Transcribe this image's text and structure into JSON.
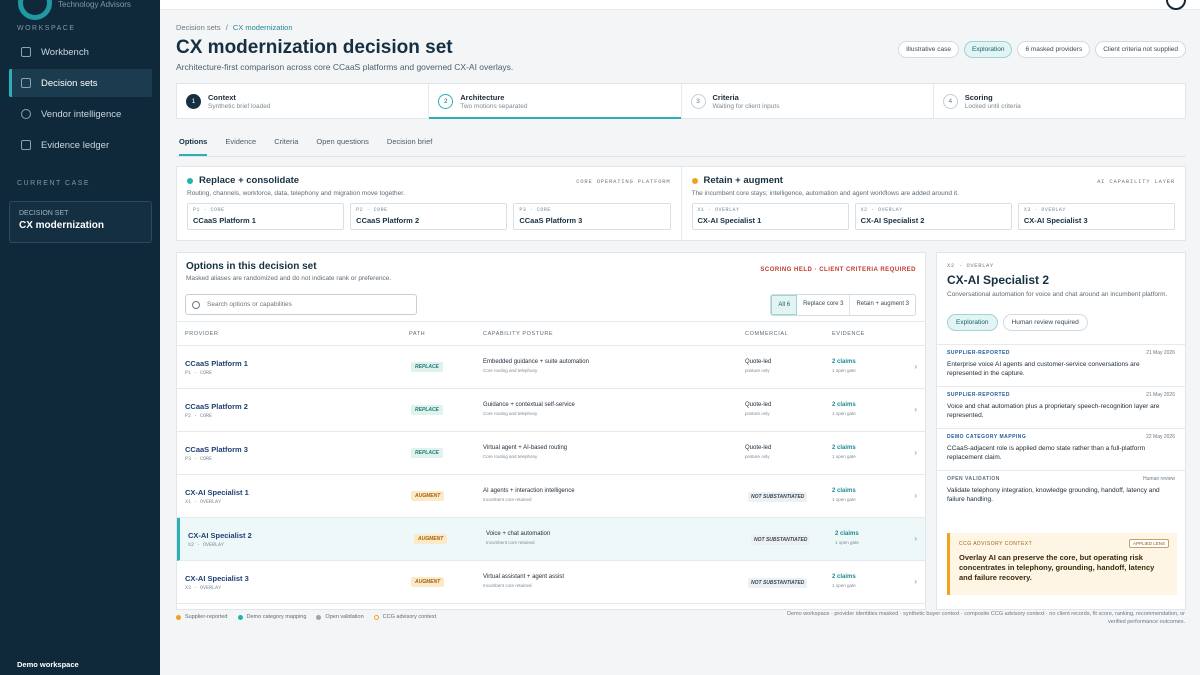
{
  "brand": {
    "tagline": "Technology Advisors"
  },
  "sidebar": {
    "workspace_label": "WORKSPACE",
    "items": [
      {
        "label": "Workbench",
        "icon": "grid-icon"
      },
      {
        "label": "Decision sets",
        "icon": "document-icon"
      },
      {
        "label": "Vendor intelligence",
        "icon": "user-icon"
      },
      {
        "label": "Evidence ledger",
        "icon": "ledger-icon"
      }
    ],
    "current_case_label": "CURRENT CASE",
    "case_small": "DECISION SET",
    "case_name": "CX modernization",
    "footer": "Demo workspace"
  },
  "breadcrumb": {
    "parent": "Decision sets",
    "sep": "/",
    "current": "CX modernization"
  },
  "page": {
    "title": "CX modernization decision set",
    "subtitle": "Architecture-first comparison across core CCaaS platforms and governed CX-AI overlays.",
    "pills": [
      "Illustrative case",
      "Exploration",
      "6 masked providers",
      "Client criteria not supplied"
    ]
  },
  "steps": [
    {
      "num": "1",
      "title": "Context",
      "sub": "Synthetic brief loaded"
    },
    {
      "num": "2",
      "title": "Architecture",
      "sub": "Two motions separated"
    },
    {
      "num": "3",
      "title": "Criteria",
      "sub": "Waiting for client inputs"
    },
    {
      "num": "4",
      "title": "Scoring",
      "sub": "Locked until criteria"
    }
  ],
  "tabs": [
    "Options",
    "Evidence",
    "Criteria",
    "Open questions",
    "Decision brief"
  ],
  "strategies": [
    {
      "title": "Replace + consolidate",
      "tag": "CORE OPERATING PLATFORM",
      "color": "#1fb5ad",
      "desc": "Routing, channels, workforce, data, telephony and migration move together.",
      "chips": [
        {
          "code": "P1 · CORE",
          "name": "CCaaS Platform 1"
        },
        {
          "code": "P2 · CORE",
          "name": "CCaaS Platform 2"
        },
        {
          "code": "P3 · CORE",
          "name": "CCaaS Platform 3"
        }
      ]
    },
    {
      "title": "Retain + augment",
      "tag": "AI CAPABILITY LAYER",
      "color": "#f0a21c",
      "desc": "The incumbent core stays; intelligence, automation and agent workflows are added around it.",
      "chips": [
        {
          "code": "X1 · OVERLAY",
          "name": "CX-AI Specialist 1"
        },
        {
          "code": "X2 · OVERLAY",
          "name": "CX-AI Specialist 2"
        },
        {
          "code": "X3 · OVERLAY",
          "name": "CX-AI Specialist 3"
        }
      ]
    }
  ],
  "options": {
    "title": "Options in this decision set",
    "sub": "Masked aliases are randomized and do not indicate rank or preference.",
    "flag": "SCORING HELD · CLIENT CRITERIA REQUIRED",
    "search_placeholder": "Search options or capabilities",
    "filters": [
      "All 6",
      "Replace core 3",
      "Retain + augment 3"
    ],
    "headers": [
      "PROVIDER",
      "PATH",
      "CAPABILITY POSTURE",
      "COMMERCIAL",
      "EVIDENCE"
    ],
    "rows": [
      {
        "name": "CCaaS Platform 1",
        "code": "P1 · CORE",
        "path": "REPLACE",
        "cap": "Embedded guidance + suite automation",
        "cap2": "Core routing and telephony",
        "com": "Quote-led",
        "com2": "posture only",
        "ns": "",
        "ev": "2 claims",
        "ev2": "1 open gate"
      },
      {
        "name": "CCaaS Platform 2",
        "code": "P2 · CORE",
        "path": "REPLACE",
        "cap": "Guidance + contextual self-service",
        "cap2": "Core routing and telephony",
        "com": "Quote-led",
        "com2": "posture only",
        "ns": "",
        "ev": "2 claims",
        "ev2": "1 open gate"
      },
      {
        "name": "CCaaS Platform 3",
        "code": "P3 · CORE",
        "path": "REPLACE",
        "cap": "Virtual agent + AI-based routing",
        "cap2": "Core routing and telephony",
        "com": "Quote-led",
        "com2": "posture only",
        "ns": "",
        "ev": "2 claims",
        "ev2": "1 open gate"
      },
      {
        "name": "CX-AI Specialist 1",
        "code": "X1 · OVERLAY",
        "path": "AUGMENT",
        "cap": "AI agents + interaction intelligence",
        "cap2": "Incumbent core retained",
        "com": "",
        "com2": "",
        "ns": "NOT SUBSTANTIATED",
        "ev": "2 claims",
        "ev2": "1 open gate"
      },
      {
        "name": "CX-AI Specialist 2",
        "code": "X2 · OVERLAY",
        "path": "AUGMENT",
        "cap": "Voice + chat automation",
        "cap2": "Incumbent core retained",
        "com": "",
        "com2": "",
        "ns": "NOT SUBSTANTIATED",
        "ev": "2 claims",
        "ev2": "1 open gate"
      },
      {
        "name": "CX-AI Specialist 3",
        "code": "X3 · OVERLAY",
        "path": "AUGMENT",
        "cap": "Virtual assistant + agent assist",
        "cap2": "Incumbent core retained",
        "com": "",
        "com2": "",
        "ns": "NOT SUBSTANTIATED",
        "ev": "2 claims",
        "ev2": "1 open gate"
      }
    ]
  },
  "legend": [
    {
      "label": "Supplier-reported",
      "color": "#f0a21c"
    },
    {
      "label": "Demo category mapping",
      "color": "#1fb5ad"
    },
    {
      "label": "Open validation",
      "color": "#9aa7b0"
    },
    {
      "label": "CCG advisory context",
      "color": "#f0a21c"
    }
  ],
  "footnote": "Demo workspace · provider identities masked · synthetic buyer context · composite CCG advisory context · no client records, fit score, ranking, recommendation, or verified performance outcomes.",
  "detail": {
    "code": "X2 · OVERLAY",
    "title": "CX-AI Specialist 2",
    "sub": "Conversational automation for voice and chat around an incumbent platform.",
    "pills": [
      "Exploration",
      "Human review required"
    ],
    "evidence": [
      {
        "kind": "SUPPLIER-REPORTED",
        "date": "21 May 2026",
        "text": "Enterprise voice AI agents and customer-service conversations are represented in the capture."
      },
      {
        "kind": "SUPPLIER-REPORTED",
        "date": "21 May 2026",
        "text": "Voice and chat automation plus a proprietary speech-recognition layer are represented."
      },
      {
        "kind": "DEMO CATEGORY MAPPING",
        "date": "22 May 2026",
        "text": "CCaaS-adjacent role is applied demo state rather than a full-platform replacement claim."
      },
      {
        "kind": "OPEN VALIDATION",
        "date": "Human review",
        "text": "Validate telephony integration, knowledge grounding, handoff, latency and failure handling."
      }
    ],
    "advisory": {
      "kind": "CCG ADVISORY CONTEXT",
      "tag": "APPLIED LENS",
      "text": "Overlay AI can preserve the core, but operating risk concentrates in telephony, grounding, handoff, latency and failure recovery."
    }
  }
}
